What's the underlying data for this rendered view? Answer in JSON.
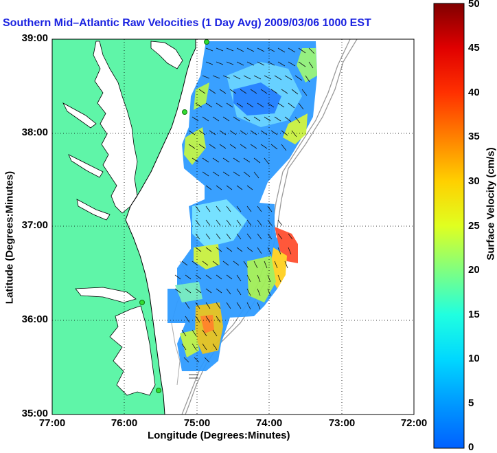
{
  "title": "Southern Mid–Atlantic Raw Velocities (1 Day Avg) 2009/03/06 1000 EST",
  "axes": {
    "xlabel": "Longitude (Degrees:Minutes)",
    "ylabel": "Latitude (Degrees:Minutes)",
    "lat_ticks": [
      "39:00",
      "38:00",
      "37:00",
      "36:00",
      "35:00"
    ],
    "lon_ticks": [
      "77:00",
      "76:00",
      "75:00",
      "74:00",
      "73:00",
      "72:00"
    ]
  },
  "colorbar": {
    "label": "Surface Velocity (cm/s)",
    "ticks": [
      "50",
      "45",
      "40",
      "35",
      "30",
      "25",
      "20",
      "15",
      "10",
      "5",
      "0"
    ],
    "range": [
      0,
      50
    ]
  },
  "colors": {
    "land": "#5ff5a8",
    "title": "#1a22e0",
    "station": "#33dd33"
  },
  "legend": "Surface Velocity (cm/s)"
}
